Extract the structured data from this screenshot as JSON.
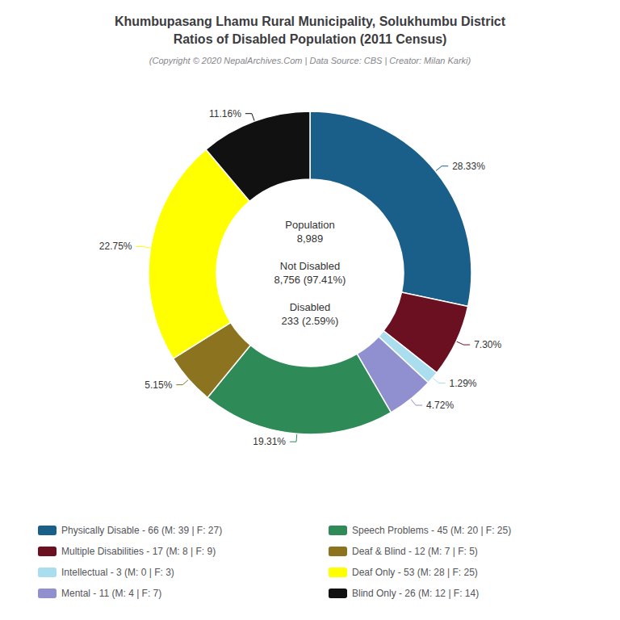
{
  "chart_data": {
    "type": "pie",
    "title": "Khumbupasang Lhamu Rural Municipality, Solukhumbu District\nRatios of Disabled Population (2011 Census)",
    "subtitle": "(Copyright © 2020 NepalArchives.Com | Data Source: CBS | Creator: Milan Karki)",
    "categories": [
      "Physically Disable - 66 (M: 39 | F: 27)",
      "Multiple Disabilities - 17 (M: 8 | F: 9)",
      "Intellectual - 3 (M: 0 | F: 3)",
      "Mental - 11 (M: 4 | F: 7)",
      "Speech Problems - 45 (M: 20 | F: 25)",
      "Deaf & Blind - 12 (M: 7 | F: 5)",
      "Deaf Only - 53 (M: 28 | F: 25)",
      "Blind Only - 26 (M: 12 | F: 14)"
    ],
    "values": [
      28.33,
      7.3,
      1.29,
      4.72,
      19.31,
      5.15,
      22.75,
      11.16
    ],
    "value_labels": [
      "28.33%",
      "7.30%",
      "1.29%",
      "4.72%",
      "19.31%",
      "5.15%",
      "22.75%",
      "11.16%"
    ],
    "colors": [
      "#1a5f8a",
      "#6b1020",
      "#aaddee",
      "#9090d0",
      "#2e8b57",
      "#8b7320",
      "#ffff00",
      "#111111"
    ],
    "data_labels": true,
    "legend": "bottom",
    "annotations": [
      "Population\n8,989\n\nNot Disabled\n8,756 (97.41%)\n\nDisabled\n233 (2.59%)"
    ]
  }
}
